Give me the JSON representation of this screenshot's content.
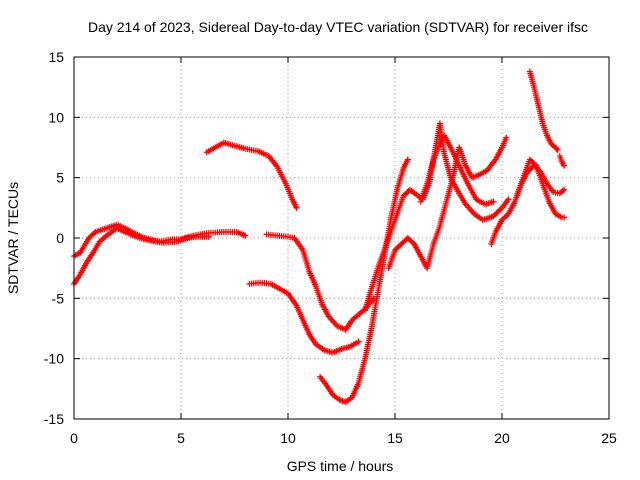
{
  "chart_data": {
    "type": "scatter",
    "title": "Day 214 of 2023, Sidereal Day-to-day VTEC variation (SDTVAR) for receiver ifsc",
    "xlabel": "GPS time / hours",
    "ylabel": "SDTVAR / TECUs",
    "xlim": [
      0,
      25
    ],
    "ylim": [
      -15,
      15
    ],
    "xticks": [
      0,
      5,
      10,
      15,
      20,
      25
    ],
    "yticks": [
      -15,
      -10,
      -5,
      0,
      5,
      10,
      15
    ],
    "xtick_labels": [
      "0",
      "5",
      "10",
      "15",
      "20",
      "25"
    ],
    "ytick_labels": [
      "-15",
      "-10",
      "-5",
      "0",
      "5",
      "10",
      "15"
    ],
    "grid": true,
    "marker": "+",
    "color": "#ff0000",
    "series": [
      {
        "name": "arc-early-upper",
        "points": [
          [
            0.0,
            -1.5
          ],
          [
            0.3,
            -1.2
          ],
          [
            0.7,
            0.0
          ],
          [
            1.0,
            0.5
          ],
          [
            1.5,
            0.8
          ],
          [
            2.0,
            1.1
          ],
          [
            2.4,
            0.8
          ],
          [
            2.8,
            0.4
          ],
          [
            3.3,
            0.0
          ],
          [
            4.0,
            -0.3
          ],
          [
            4.6,
            -0.1
          ],
          [
            5.0,
            -0.1
          ],
          [
            5.6,
            0.2
          ],
          [
            6.2,
            0.4
          ],
          [
            7.0,
            0.5
          ],
          [
            7.6,
            0.5
          ],
          [
            8.0,
            0.2
          ]
        ]
      },
      {
        "name": "arc-early-lower",
        "points": [
          [
            0.0,
            -3.8
          ],
          [
            0.3,
            -3.0
          ],
          [
            0.6,
            -2.0
          ],
          [
            0.9,
            -1.2
          ],
          [
            1.2,
            -0.3
          ],
          [
            1.6,
            0.3
          ],
          [
            2.0,
            0.8
          ],
          [
            2.4,
            0.5
          ],
          [
            2.9,
            0.1
          ],
          [
            3.5,
            -0.2
          ],
          [
            4.2,
            -0.4
          ],
          [
            4.8,
            -0.3
          ],
          [
            5.3,
            0.0
          ],
          [
            5.8,
            0.1
          ],
          [
            6.3,
            0.1
          ]
        ]
      },
      {
        "name": "arc-morning",
        "points": [
          [
            6.2,
            7.1
          ],
          [
            6.6,
            7.5
          ],
          [
            7.0,
            7.9
          ],
          [
            7.4,
            7.7
          ],
          [
            8.0,
            7.4
          ],
          [
            8.6,
            7.2
          ],
          [
            9.1,
            6.8
          ],
          [
            9.5,
            5.9
          ],
          [
            9.9,
            4.5
          ],
          [
            10.2,
            3.2
          ],
          [
            10.4,
            2.5
          ]
        ]
      },
      {
        "name": "arc-dip-deep",
        "points": [
          [
            9.0,
            0.3
          ],
          [
            9.5,
            0.2
          ],
          [
            10.0,
            0.1
          ],
          [
            10.3,
            0.0
          ],
          [
            10.7,
            -1.0
          ],
          [
            11.0,
            -2.8
          ],
          [
            11.3,
            -4.0
          ],
          [
            11.6,
            -5.5
          ],
          [
            11.9,
            -6.5
          ],
          [
            12.3,
            -7.3
          ],
          [
            12.7,
            -7.6
          ],
          [
            13.0,
            -6.8
          ],
          [
            13.4,
            -6.2
          ],
          [
            13.7,
            -5.7
          ],
          [
            14.0,
            -5.0
          ]
        ]
      },
      {
        "name": "arc-dip-mid",
        "points": [
          [
            8.2,
            -3.8
          ],
          [
            8.7,
            -3.7
          ],
          [
            9.2,
            -3.8
          ],
          [
            9.6,
            -4.2
          ],
          [
            10.0,
            -4.6
          ],
          [
            10.4,
            -5.6
          ],
          [
            10.7,
            -6.8
          ],
          [
            11.0,
            -8.0
          ],
          [
            11.3,
            -8.8
          ],
          [
            11.7,
            -9.3
          ],
          [
            12.1,
            -9.5
          ],
          [
            12.5,
            -9.2
          ],
          [
            12.9,
            -9.0
          ],
          [
            13.3,
            -8.6
          ]
        ]
      },
      {
        "name": "arc-dip-bottom",
        "points": [
          [
            11.5,
            -11.5
          ],
          [
            11.8,
            -12.2
          ],
          [
            12.1,
            -13.0
          ],
          [
            12.4,
            -13.4
          ],
          [
            12.7,
            -13.6
          ],
          [
            13.0,
            -13.2
          ],
          [
            13.3,
            -12.0
          ],
          [
            13.6,
            -10.0
          ],
          [
            13.9,
            -7.5
          ],
          [
            14.2,
            -4.5
          ],
          [
            14.5,
            -1.5
          ],
          [
            14.8,
            1.5
          ],
          [
            15.1,
            4.0
          ],
          [
            15.4,
            5.8
          ],
          [
            15.6,
            6.5
          ]
        ]
      },
      {
        "name": "arc-rise",
        "points": [
          [
            13.6,
            -6.0
          ],
          [
            13.9,
            -4.2
          ],
          [
            14.2,
            -2.5
          ],
          [
            14.5,
            -1.0
          ],
          [
            14.8,
            0.5
          ],
          [
            15.1,
            2.0
          ],
          [
            15.4,
            3.5
          ],
          [
            15.7,
            4.0
          ],
          [
            16.0,
            3.6
          ],
          [
            16.3,
            3.2
          ],
          [
            16.6,
            4.5
          ],
          [
            16.9,
            7.5
          ],
          [
            17.1,
            9.5
          ],
          [
            17.3,
            7.0
          ],
          [
            17.6,
            5.0
          ],
          [
            17.9,
            4.0
          ],
          [
            18.3,
            2.8
          ],
          [
            18.7,
            2.0
          ],
          [
            19.1,
            1.5
          ],
          [
            19.6,
            1.8
          ],
          [
            20.0,
            2.5
          ],
          [
            20.3,
            3.2
          ]
        ]
      },
      {
        "name": "arc-afternoon-a",
        "points": [
          [
            14.7,
            -2.5
          ],
          [
            15.0,
            -1.0
          ],
          [
            15.3,
            -0.5
          ],
          [
            15.6,
            0.0
          ],
          [
            15.9,
            -0.5
          ],
          [
            16.2,
            -1.5
          ],
          [
            16.5,
            -2.5
          ],
          [
            16.8,
            -0.5
          ],
          [
            17.1,
            1.0
          ],
          [
            17.4,
            3.0
          ],
          [
            17.7,
            5.0
          ],
          [
            18.0,
            7.5
          ],
          [
            18.3,
            6.0
          ],
          [
            18.6,
            5.0
          ],
          [
            18.9,
            5.2
          ],
          [
            19.3,
            5.6
          ],
          [
            19.7,
            6.5
          ],
          [
            20.0,
            7.5
          ],
          [
            20.2,
            8.3
          ]
        ]
      },
      {
        "name": "arc-afternoon-b",
        "points": [
          [
            16.2,
            3.0
          ],
          [
            16.5,
            4.5
          ],
          [
            16.8,
            6.5
          ],
          [
            17.1,
            7.8
          ],
          [
            17.3,
            8.5
          ],
          [
            17.6,
            7.5
          ],
          [
            18.0,
            6.0
          ],
          [
            18.4,
            4.5
          ],
          [
            18.8,
            3.2
          ],
          [
            19.2,
            2.8
          ],
          [
            19.6,
            3.0
          ]
        ]
      },
      {
        "name": "arc-evening-a",
        "points": [
          [
            19.5,
            -0.5
          ],
          [
            19.7,
            0.5
          ],
          [
            20.0,
            1.5
          ],
          [
            20.3,
            2.0
          ],
          [
            20.6,
            3.0
          ],
          [
            20.9,
            4.5
          ],
          [
            21.2,
            5.5
          ],
          [
            21.5,
            6.0
          ],
          [
            21.8,
            5.5
          ],
          [
            22.1,
            4.5
          ],
          [
            22.4,
            3.8
          ],
          [
            22.7,
            3.7
          ],
          [
            22.9,
            4.0
          ]
        ]
      },
      {
        "name": "arc-evening-b",
        "points": [
          [
            20.7,
            3.5
          ],
          [
            21.0,
            5.0
          ],
          [
            21.3,
            6.5
          ],
          [
            21.6,
            6.0
          ],
          [
            21.9,
            4.5
          ],
          [
            22.2,
            3.0
          ],
          [
            22.5,
            2.0
          ],
          [
            22.8,
            1.7
          ],
          [
            22.9,
            1.7
          ]
        ]
      },
      {
        "name": "arc-peak",
        "points": [
          [
            21.3,
            13.8
          ],
          [
            21.5,
            12.5
          ],
          [
            21.7,
            11.0
          ],
          [
            21.9,
            9.5
          ],
          [
            22.1,
            8.5
          ],
          [
            22.3,
            7.8
          ],
          [
            22.5,
            7.5
          ],
          [
            22.6,
            7.3
          ]
        ]
      },
      {
        "name": "arc-late",
        "points": [
          [
            22.7,
            6.8
          ],
          [
            22.8,
            6.3
          ],
          [
            22.9,
            6.0
          ]
        ]
      }
    ]
  }
}
